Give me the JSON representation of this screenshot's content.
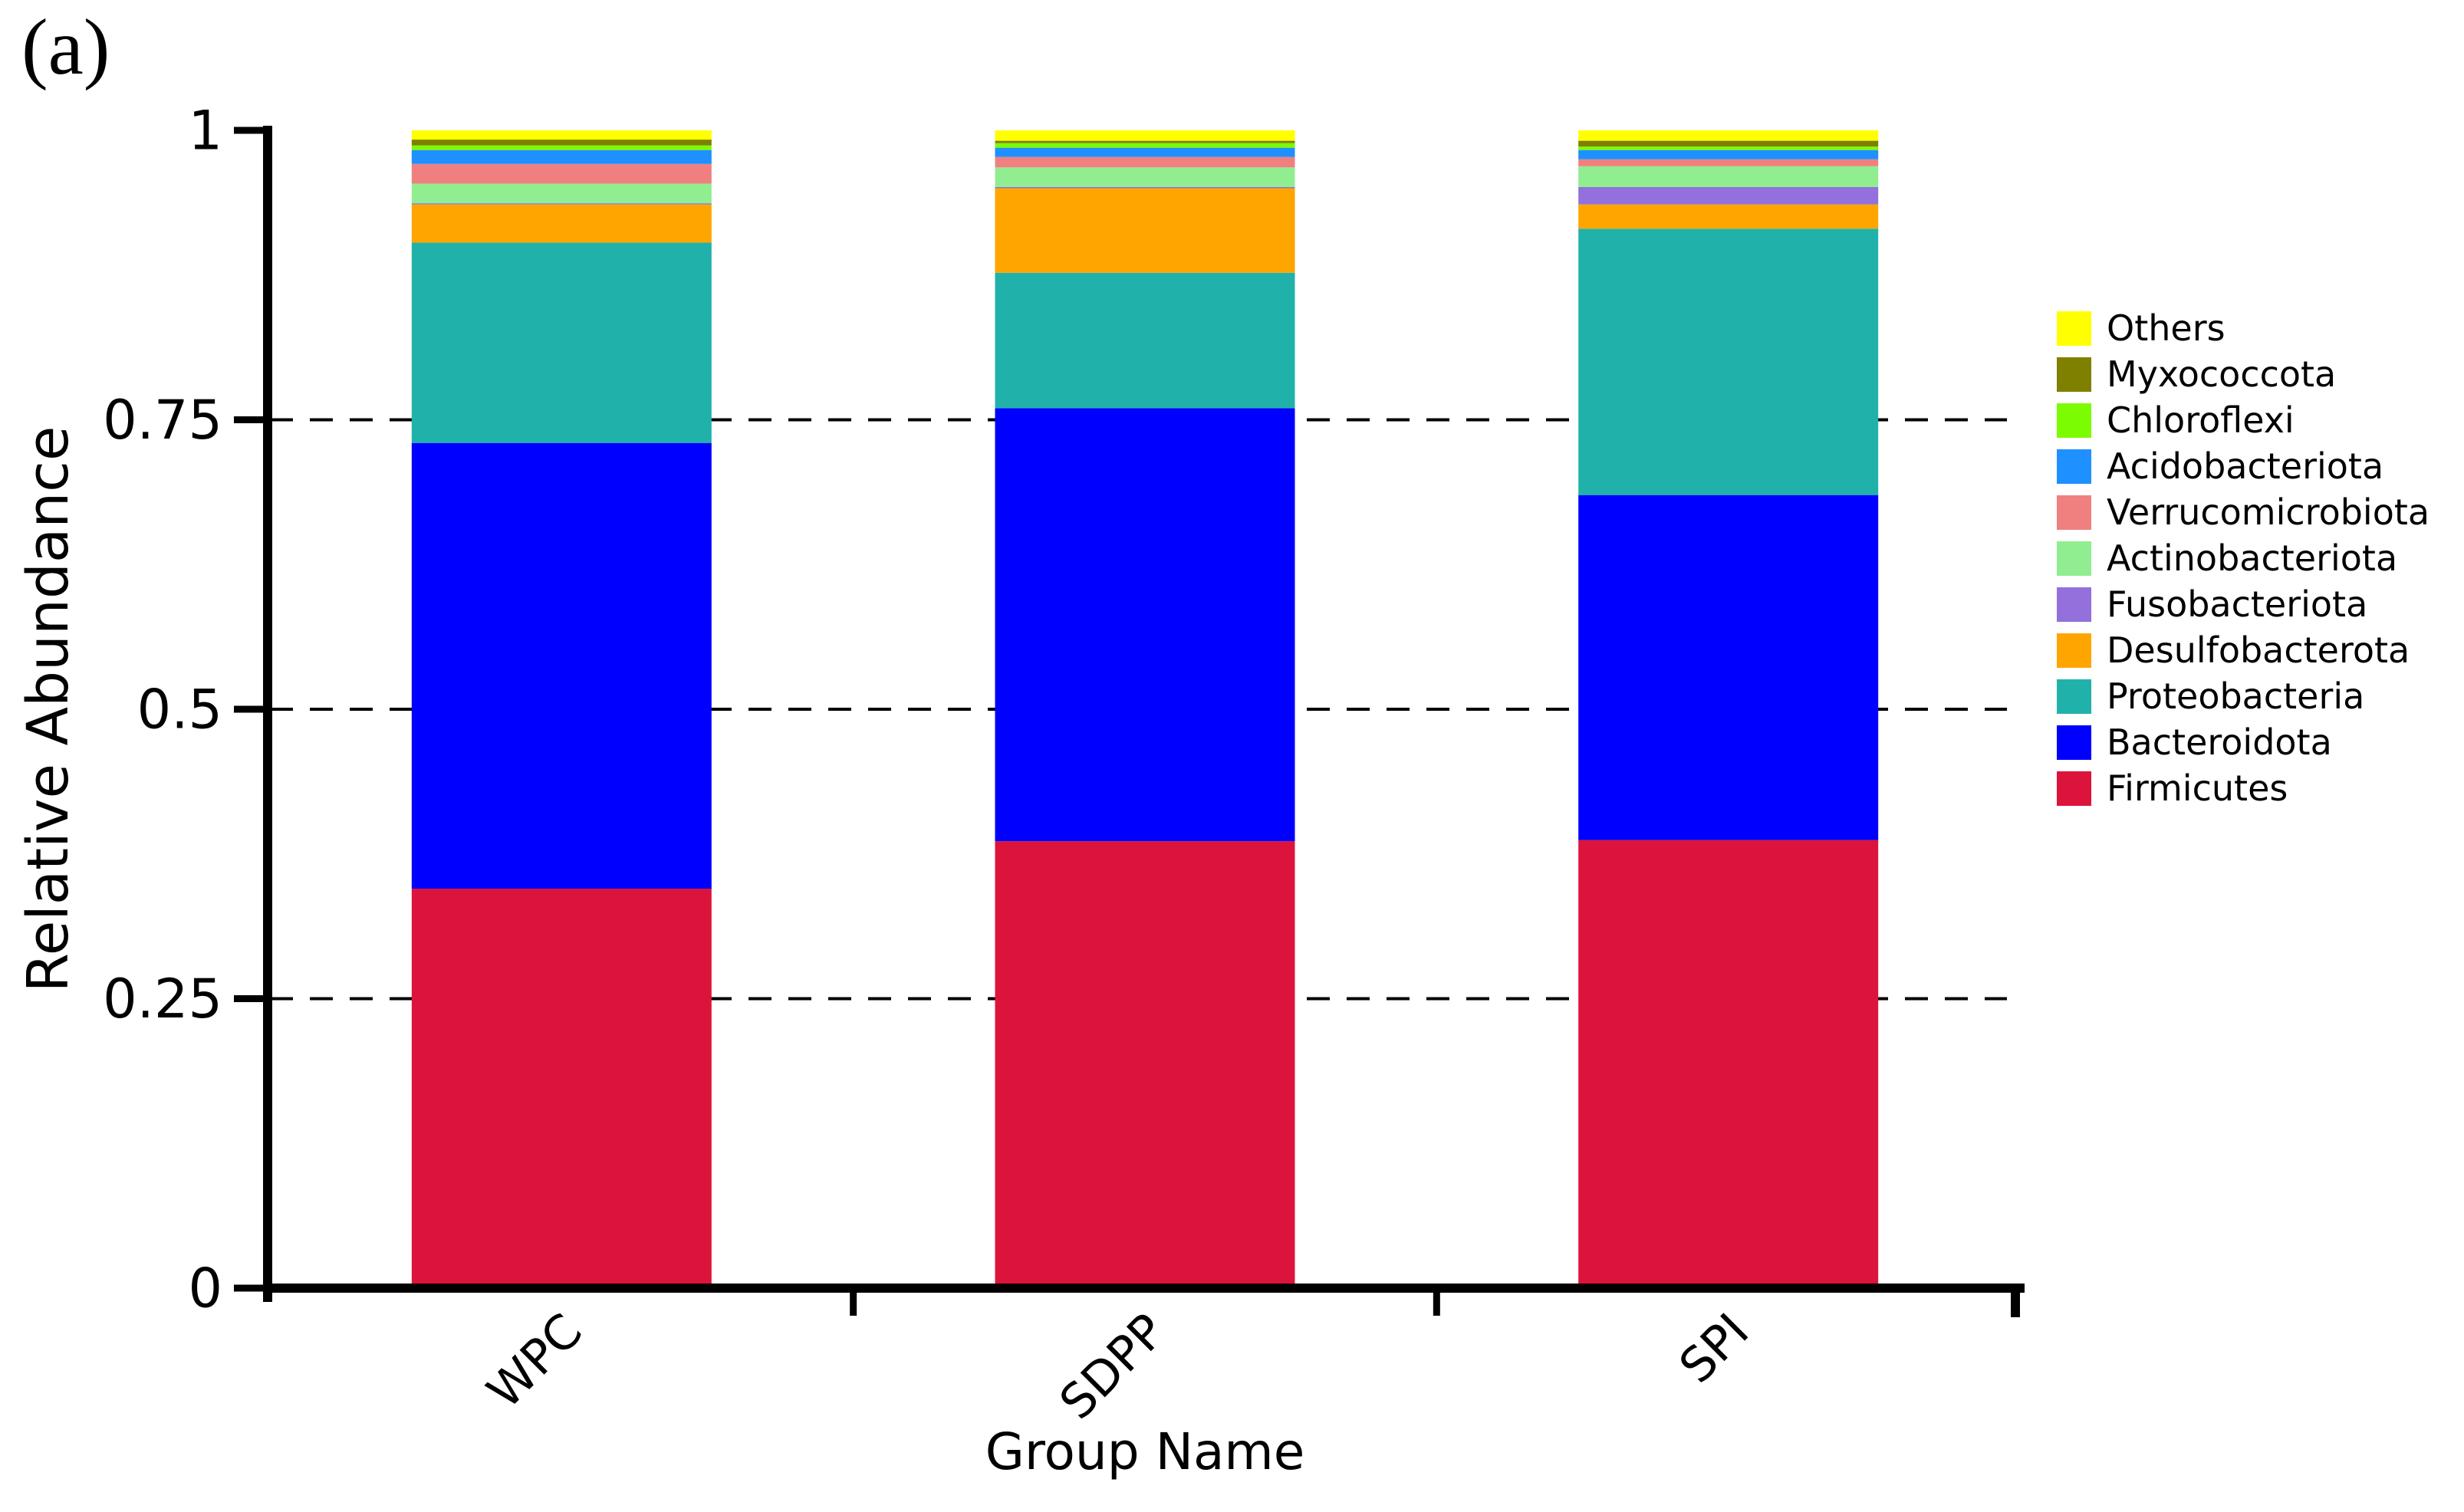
{
  "figure_label": "(a)",
  "chart_data": {
    "type": "bar",
    "stacked": true,
    "title": "",
    "xlabel": "Group Name",
    "ylabel": "Relative Abundance",
    "categories": [
      "WPC",
      "SDPP",
      "SPI"
    ],
    "ylim": [
      0,
      1
    ],
    "ytick_values": [
      0,
      0.25,
      0.5,
      0.75,
      1
    ],
    "ytick_labels": [
      "0",
      "0.25",
      "0.5",
      "0.75",
      "1"
    ],
    "gridlines": {
      "values": [
        0.25,
        0.5,
        0.75
      ],
      "style": "dashed",
      "color": "#000000"
    },
    "legend_position": "right",
    "legend_top_to_bottom": [
      "Others",
      "Myxococcota",
      "Chloroflexi",
      "Acidobacteriota",
      "Verrucomicrobiota",
      "Actinobacteriota",
      "Fusobacteriota",
      "Desulfobacterota",
      "Proteobacteria",
      "Bacteroidota",
      "Firmicutes"
    ],
    "series": [
      {
        "name": "Firmicutes",
        "color": "#DC143C",
        "values": [
          0.345,
          0.386,
          0.387
        ]
      },
      {
        "name": "Bacteroidota",
        "color": "#0000FF",
        "values": [
          0.385,
          0.374,
          0.298
        ]
      },
      {
        "name": "Proteobacteria",
        "color": "#20B2AA",
        "values": [
          0.173,
          0.117,
          0.23
        ]
      },
      {
        "name": "Desulfobacterota",
        "color": "#FFA500",
        "values": [
          0.033,
          0.073,
          0.021
        ]
      },
      {
        "name": "Fusobacteriota",
        "color": "#9370DB",
        "values": [
          0.001,
          0.001,
          0.015
        ]
      },
      {
        "name": "Actinobacteriota",
        "color": "#90EE90",
        "values": [
          0.017,
          0.017,
          0.018
        ]
      },
      {
        "name": "Verrucomicrobiota",
        "color": "#F08080",
        "values": [
          0.017,
          0.009,
          0.006
        ]
      },
      {
        "name": "Acidobacteriota",
        "color": "#1E90FF",
        "values": [
          0.012,
          0.008,
          0.008
        ]
      },
      {
        "name": "Chloroflexi",
        "color": "#7CFC00",
        "values": [
          0.004,
          0.004,
          0.003
        ]
      },
      {
        "name": "Myxococcota",
        "color": "#808000",
        "values": [
          0.005,
          0.002,
          0.005
        ]
      },
      {
        "name": "Others",
        "color": "#FFFF00",
        "values": [
          0.008,
          0.009,
          0.009
        ]
      }
    ]
  }
}
